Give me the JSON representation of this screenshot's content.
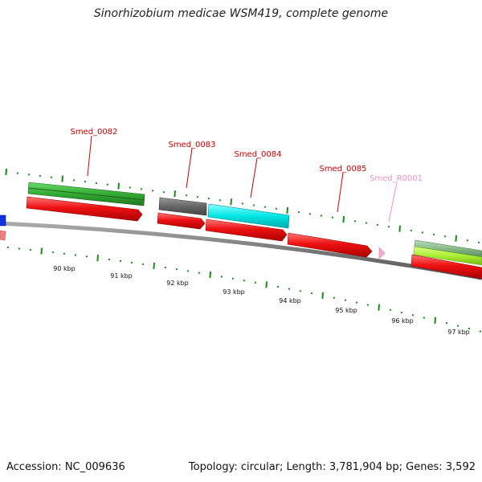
{
  "title": "Sinorhizobium medicae WSM419, complete genome",
  "footer": {
    "accession": "Accession: NC_009636",
    "summary": "Topology: circular; Length: 3,781,904 bp; Genes: 3,592"
  },
  "scale": {
    "unit": "kbp",
    "labels": [
      "90 kbp",
      "91 kbp",
      "92 kbp",
      "93 kbp",
      "94 kbp",
      "95 kbp",
      "96 kbp",
      "97 kbp"
    ]
  },
  "genes": [
    {
      "name": "Smed_0082",
      "color": "#cc0000"
    },
    {
      "name": "Smed_0083",
      "color": "#cc0000"
    },
    {
      "name": "Smed_0084",
      "color": "#cc0000"
    },
    {
      "name": "Smed_0085",
      "color": "#cc0000"
    },
    {
      "name": "Smed_R0001",
      "color": "#f090c0"
    }
  ],
  "colors": {
    "backbone": "#7a7a7a",
    "tick": "#1a8a1a",
    "cds": "#ee1111",
    "cog_green": "#33aa33",
    "cog_gray": "#666666",
    "cog_cyan": "#00dddd",
    "cog_lime": "#aaee33",
    "cog_sage": "#88bb88",
    "rna": "#f7a6cf",
    "blue": "#1133dd",
    "salmon": "#f08080"
  }
}
